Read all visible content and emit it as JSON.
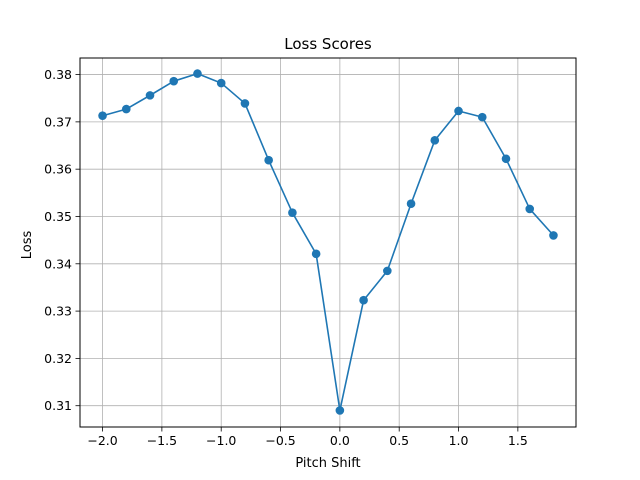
{
  "chart_data": {
    "type": "line",
    "title": "Loss Scores",
    "xlabel": "Pitch Shift",
    "ylabel": "Loss",
    "xlim": [
      -2.19,
      1.99
    ],
    "ylim": [
      0.3055,
      0.3835
    ],
    "xticks": [
      -2.0,
      -1.5,
      -1.0,
      -0.5,
      0.0,
      0.5,
      1.0,
      1.5
    ],
    "xtick_labels": [
      "−2.0",
      "−1.5",
      "−1.0",
      "−0.5",
      "0.0",
      "0.5",
      "1.0",
      "1.5"
    ],
    "yticks": [
      0.31,
      0.32,
      0.33,
      0.34,
      0.35,
      0.36,
      0.37,
      0.38
    ],
    "ytick_labels": [
      "0.31",
      "0.32",
      "0.33",
      "0.34",
      "0.35",
      "0.36",
      "0.37",
      "0.38"
    ],
    "grid": true,
    "series": [
      {
        "color": "#1f77b4",
        "marker": "circle",
        "x": [
          -2.0,
          -1.8,
          -1.6,
          -1.4,
          -1.2,
          -1.0,
          -0.8,
          -0.6,
          -0.4,
          -0.2,
          0.0,
          0.2,
          0.4,
          0.6,
          0.8,
          1.0,
          1.2,
          1.4,
          1.6,
          1.8
        ],
        "y": [
          0.3713,
          0.3727,
          0.3756,
          0.3786,
          0.3802,
          0.3782,
          0.3739,
          0.3619,
          0.3508,
          0.3421,
          0.309,
          0.3323,
          0.3385,
          0.3527,
          0.3661,
          0.3723,
          0.371,
          0.3622,
          0.3516,
          0.346
        ]
      }
    ]
  }
}
